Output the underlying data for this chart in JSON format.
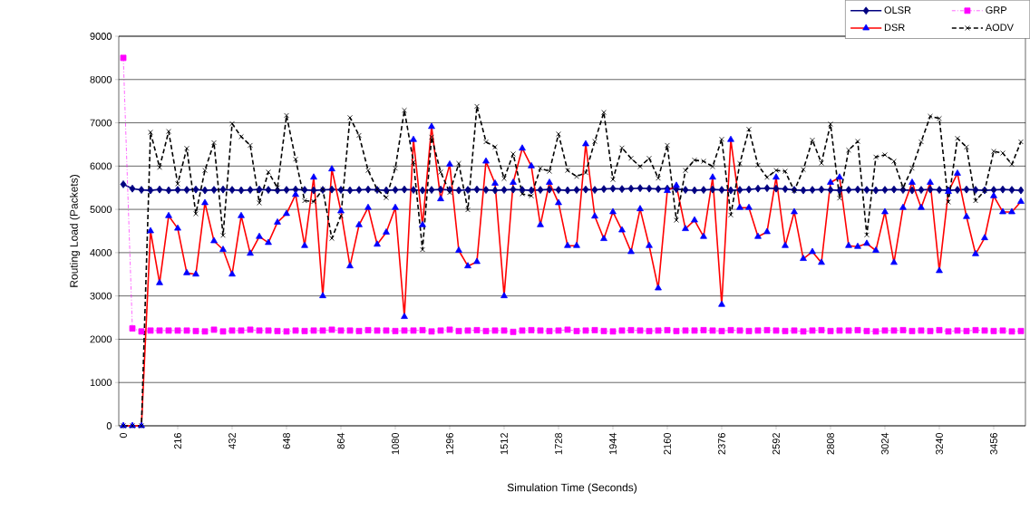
{
  "chart_data": {
    "type": "line",
    "xlabel": "Simulation Time (Seconds)",
    "ylabel": "Routing Load (Packets)",
    "x": [
      0,
      36,
      72,
      108,
      144,
      180,
      216,
      252,
      288,
      324,
      360,
      396,
      432,
      468,
      504,
      540,
      576,
      612,
      648,
      684,
      720,
      756,
      792,
      828,
      864,
      900,
      936,
      972,
      1008,
      1044,
      1080,
      1116,
      1152,
      1188,
      1224,
      1260,
      1296,
      1332,
      1368,
      1404,
      1440,
      1476,
      1512,
      1548,
      1584,
      1620,
      1656,
      1692,
      1728,
      1764,
      1800,
      1836,
      1872,
      1908,
      1944,
      1980,
      2016,
      2052,
      2088,
      2124,
      2160,
      2196,
      2232,
      2268,
      2304,
      2340,
      2376,
      2412,
      2448,
      2484,
      2520,
      2556,
      2592,
      2628,
      2664,
      2700,
      2736,
      2772,
      2808,
      2844,
      2880,
      2916,
      2952,
      2988,
      3024,
      3060,
      3096,
      3132,
      3168,
      3204,
      3240,
      3276,
      3312,
      3348,
      3384,
      3420,
      3456,
      3492,
      3528,
      3564
    ],
    "xlim": [
      -18,
      3582
    ],
    "xticks": [
      0,
      216,
      432,
      648,
      864,
      1080,
      1296,
      1512,
      1728,
      1944,
      2160,
      2376,
      2592,
      2808,
      3024,
      3240,
      3456
    ],
    "ylim": [
      0,
      9000
    ],
    "yticks": [
      0,
      1000,
      2000,
      3000,
      4000,
      5000,
      6000,
      7000,
      8000,
      9000
    ],
    "grid": "y",
    "legend": "top right",
    "series": [
      {
        "name": "OLSR",
        "color": "#000080",
        "marker": "diamond",
        "line_style": "solid",
        "values": [
          5580,
          5480,
          5450,
          5440,
          5460,
          5440,
          5450,
          5450,
          5460,
          5440,
          5450,
          5460,
          5450,
          5440,
          5450,
          5460,
          5450,
          5440,
          5450,
          5460,
          5450,
          5440,
          5450,
          5460,
          5450,
          5440,
          5450,
          5460,
          5450,
          5440,
          5450,
          5460,
          5450,
          5440,
          5450,
          5460,
          5450,
          5440,
          5450,
          5460,
          5450,
          5440,
          5450,
          5460,
          5450,
          5440,
          5450,
          5460,
          5450,
          5440,
          5450,
          5460,
          5450,
          5470,
          5480,
          5470,
          5480,
          5490,
          5480,
          5470,
          5480,
          5470,
          5450,
          5440,
          5450,
          5460,
          5450,
          5440,
          5450,
          5460,
          5480,
          5490,
          5480,
          5470,
          5450,
          5440,
          5450,
          5460,
          5450,
          5440,
          5450,
          5460,
          5450,
          5440,
          5450,
          5460,
          5450,
          5440,
          5450,
          5460,
          5450,
          5440,
          5450,
          5460,
          5450,
          5440,
          5450,
          5460,
          5450,
          5440
        ]
      },
      {
        "name": "GRP",
        "color": "#ff00ff",
        "marker": "square",
        "line_style": "dashdot",
        "values": [
          8500,
          2250,
          2180,
          2200,
          2200,
          2200,
          2200,
          2200,
          2190,
          2180,
          2220,
          2180,
          2200,
          2200,
          2220,
          2200,
          2200,
          2190,
          2180,
          2200,
          2190,
          2200,
          2200,
          2220,
          2200,
          2200,
          2190,
          2210,
          2200,
          2200,
          2190,
          2200,
          2200,
          2210,
          2180,
          2200,
          2220,
          2190,
          2200,
          2210,
          2190,
          2200,
          2200,
          2170,
          2200,
          2210,
          2200,
          2190,
          2200,
          2220,
          2190,
          2200,
          2210,
          2190,
          2180,
          2200,
          2210,
          2200,
          2190,
          2200,
          2210,
          2190,
          2200,
          2200,
          2210,
          2200,
          2190,
          2210,
          2200,
          2190,
          2200,
          2210,
          2200,
          2190,
          2200,
          2180,
          2200,
          2210,
          2190,
          2200,
          2200,
          2210,
          2190,
          2180,
          2200,
          2200,
          2210,
          2190,
          2200,
          2190,
          2210,
          2180,
          2200,
          2190,
          2210,
          2200,
          2190,
          2200,
          2180,
          2190
        ]
      },
      {
        "name": "DSR",
        "color": "#ff0000",
        "colors": [
          "#0000ff",
          "#0000ff",
          "#0000ff",
          "#0000ff",
          "#0000ff",
          "#0000ff",
          "#0000ff",
          "#0000ff",
          "#0000ff",
          "#0000ff",
          "#0000ff",
          "#0000ff",
          "#0000ff",
          "#0000ff",
          "#0000ff",
          "#0000ff",
          "#0000ff",
          "#0000ff",
          "#0000ff",
          "#0000ff",
          "#0000ff",
          "#0000ff",
          "#0000ff",
          "#0000ff",
          "#0000ff",
          "#0000ff",
          "#0000ff",
          "#0000ff",
          "#0000ff",
          "#0000ff",
          "#0000ff",
          "#0000ff",
          "#0000ff",
          "#0000ff",
          "#0000ff",
          "#0000ff",
          "#0000ff",
          "#0000ff",
          "#0000ff",
          "#0000ff",
          "#0000ff",
          "#0000ff",
          "#0000ff",
          "#0000ff",
          "#0000ff",
          "#0000ff",
          "#0000ff",
          "#0000ff",
          "#0000ff",
          "#0000ff",
          "#0000ff",
          "#0000ff",
          "#0000ff",
          "#0000ff",
          "#0000ff",
          "#0000ff",
          "#0000ff",
          "#0000ff",
          "#0000ff",
          "#0000ff",
          "#0000ff",
          "#0000ff",
          "#0000ff",
          "#0000ff",
          "#0000ff",
          "#0000ff",
          "#0000ff",
          "#0000ff",
          "#0000ff",
          "#0000ff",
          "#0000ff",
          "#0000ff",
          "#0000ff",
          "#0000ff",
          "#0000ff",
          "#0000ff",
          "#0000ff",
          "#0000ff",
          "#0000ff",
          "#0000ff",
          "#0000ff",
          "#0000ff",
          "#0000ff",
          "#0000ff",
          "#0000ff",
          "#0000ff",
          "#0000ff",
          "#0000ff",
          "#0000ff",
          "#0000ff",
          "#0000ff",
          "#0000ff",
          "#0000ff",
          "#0000ff",
          "#0000ff",
          "#0000ff",
          "#0000ff",
          "#0000ff",
          "#0000ff",
          "#0000ff"
        ],
        "marker": "triangle",
        "line_style": "solid",
        "values": [
          0,
          0,
          0,
          4500,
          3300,
          4850,
          4560,
          3530,
          3500,
          5150,
          4270,
          4070,
          3500,
          4850,
          3980,
          4370,
          4230,
          4700,
          4900,
          5340,
          4160,
          5740,
          3000,
          5930,
          4960,
          3690,
          4640,
          5040,
          4190,
          4470,
          5040,
          2520,
          6610,
          4640,
          6910,
          5240,
          6040,
          4050,
          3690,
          3790,
          6110,
          5600,
          3000,
          5620,
          6410,
          6000,
          4640,
          5620,
          5150,
          4160,
          4160,
          6510,
          4840,
          4320,
          4940,
          4520,
          4020,
          5010,
          4160,
          3180,
          5430,
          5550,
          4550,
          4750,
          4370,
          5740,
          2800,
          6610,
          5040,
          5040,
          4370,
          4480,
          5740,
          4160,
          4940,
          3860,
          4020,
          3770,
          5620,
          5740,
          4160,
          4140,
          4210,
          4050,
          4940,
          3770,
          5040,
          5620,
          5040,
          5620,
          3580,
          5410,
          5830,
          4830,
          3970,
          4340,
          5310,
          4940,
          4940,
          5180
        ]
      },
      {
        "name": "AODV",
        "color": "#000000",
        "marker": "cross",
        "line_style": "dashed",
        "values": [
          0,
          0,
          0,
          6780,
          5970,
          6800,
          5590,
          6410,
          4900,
          5900,
          6540,
          4400,
          6980,
          6680,
          6480,
          5150,
          5860,
          5500,
          7170,
          6160,
          5200,
          5180,
          5460,
          4330,
          4850,
          7120,
          6710,
          5900,
          5460,
          5270,
          5950,
          7290,
          6090,
          4070,
          6670,
          5860,
          5390,
          6060,
          4990,
          7380,
          6560,
          6440,
          5710,
          6280,
          5360,
          5310,
          5950,
          5880,
          6740,
          5900,
          5760,
          5850,
          6570,
          7240,
          5690,
          6420,
          6180,
          5990,
          6180,
          5720,
          6480,
          4750,
          5900,
          6140,
          6110,
          5990,
          6620,
          4870,
          6060,
          6850,
          6020,
          5740,
          5900,
          5880,
          5430,
          5920,
          6600,
          6070,
          6970,
          5260,
          6370,
          6570,
          4410,
          6210,
          6260,
          6110,
          5500,
          5950,
          6560,
          7150,
          7100,
          5170,
          6640,
          6440,
          5200,
          5430,
          6340,
          6300,
          6040,
          6560
        ]
      }
    ]
  }
}
